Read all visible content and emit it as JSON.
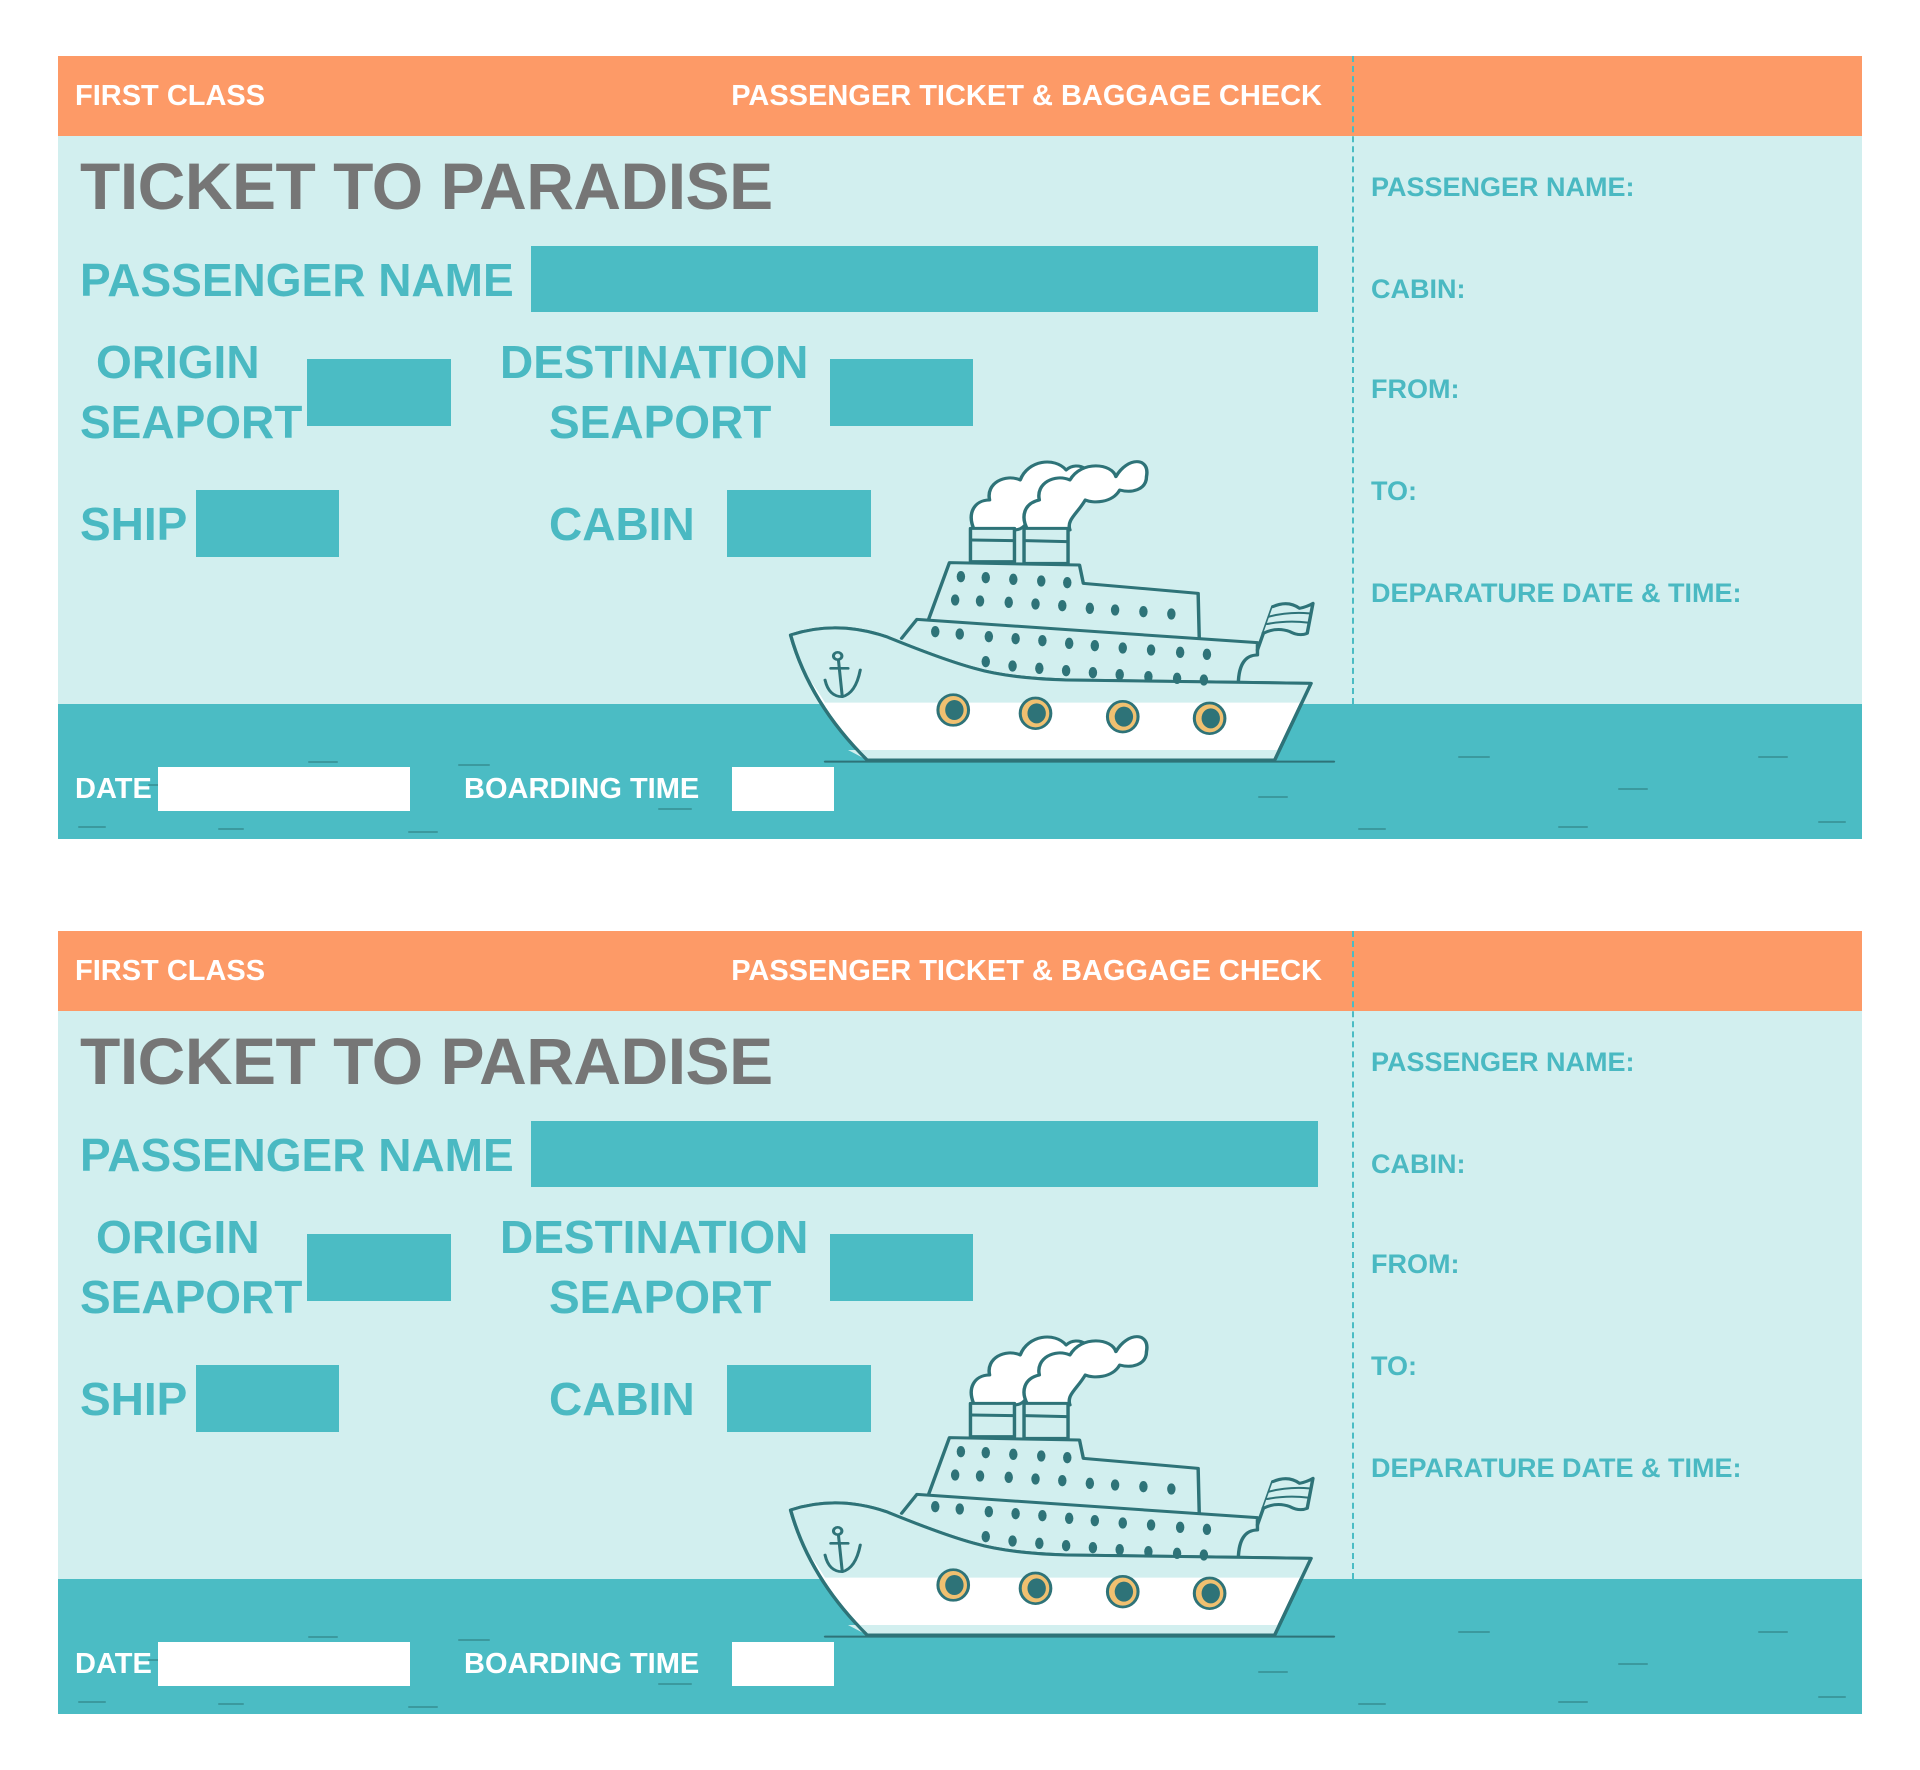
{
  "colors": {
    "header": "#fd9a67",
    "background": "#d2efef",
    "accent": "#4bbcc4",
    "title": "#767676",
    "ship_outline": "#2e7378",
    "porthole_ring": "#f0c070"
  },
  "tickets": [
    {
      "header_left": "FIRST CLASS",
      "header_right": "PASSENGER TICKET & BAGGAGE CHECK",
      "title": "TICKET TO PARADISE",
      "passenger_name_label": "PASSENGER NAME",
      "origin_label_1": "ORIGIN",
      "origin_label_2": "SEAPORT",
      "destination_label_1": "DESTINATION",
      "destination_label_2": "SEAPORT",
      "ship_label": "SHIP",
      "cabin_label": "CABIN",
      "date_label": "DATE",
      "boarding_label": "BOARDING TIME",
      "stub": [
        "PASSENGER NAME:",
        "CABIN:",
        "FROM:",
        "TO:",
        "DEPARATURE DATE & TIME:"
      ],
      "ship_icon": "cruise-ship-icon"
    },
    {
      "header_left": "FIRST CLASS",
      "header_right": "PASSENGER TICKET & BAGGAGE CHECK",
      "title": "TICKET TO PARADISE",
      "passenger_name_label": "PASSENGER NAME",
      "origin_label_1": "ORIGIN",
      "origin_label_2": "SEAPORT",
      "destination_label_1": "DESTINATION",
      "destination_label_2": "SEAPORT",
      "ship_label": "SHIP",
      "cabin_label": "CABIN",
      "date_label": "DATE",
      "boarding_label": "BOARDING TIME",
      "stub": [
        "PASSENGER NAME:",
        "CABIN:",
        "FROM:",
        "TO:",
        "DEPARATURE DATE & TIME:"
      ],
      "ship_icon": "cruise-ship-icon"
    }
  ]
}
